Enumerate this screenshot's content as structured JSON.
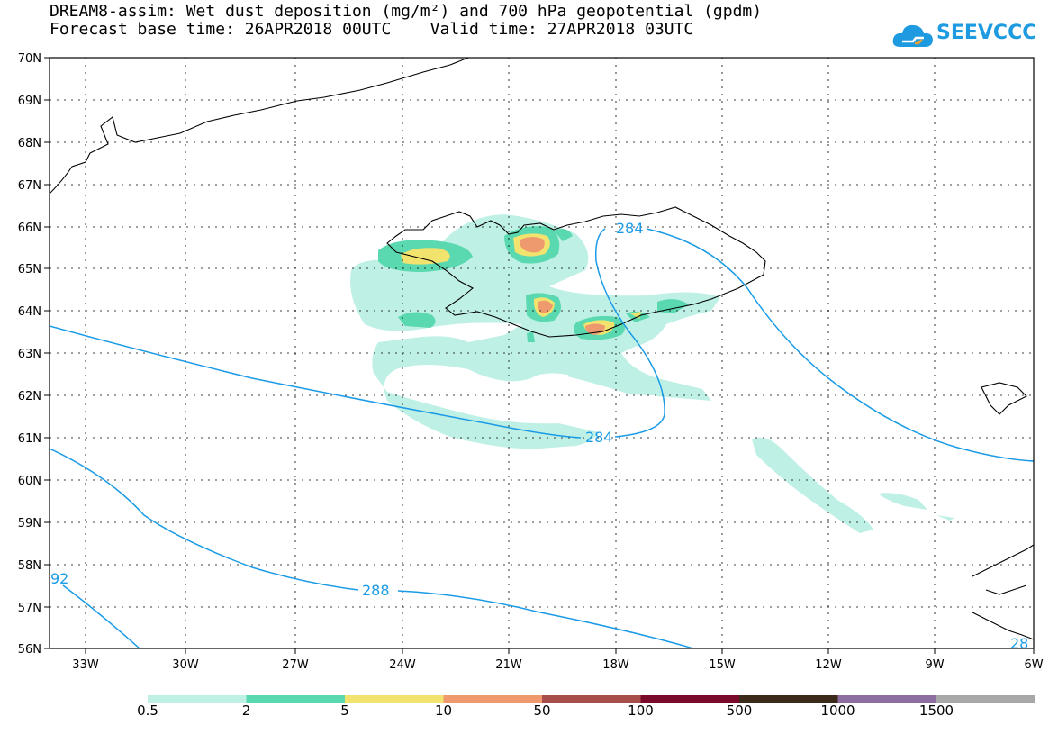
{
  "title": {
    "line1": "DREAM8-assim: Wet dust deposition (mg/m²) and 700 hPa geopotential (gpdm)",
    "line2_left": "Forecast base time: 26APR2018 00UTC",
    "line2_right": "Valid time: 27APR2018 03UTC"
  },
  "logo": {
    "text": "SEEVCCC",
    "icon": "cloud-icon",
    "color": "#1e9be0"
  },
  "axes": {
    "lon_labels": [
      "33W",
      "30W",
      "27W",
      "24W",
      "21W",
      "18W",
      "15W",
      "12W",
      "9W",
      "6W"
    ],
    "lat_labels": [
      "70N",
      "69N",
      "68N",
      "67N",
      "66N",
      "65N",
      "64N",
      "63N",
      "62N",
      "61N",
      "60N",
      "59N",
      "58N",
      "57N",
      "56N"
    ]
  },
  "contours": {
    "color": "#1a9be6",
    "labels": [
      "284",
      "284",
      "288",
      "92",
      "28"
    ]
  },
  "colorbar": {
    "colors": [
      "#bff0e6",
      "#5ad9b0",
      "#f2e36e",
      "#ee9a6e",
      "#a84e4a",
      "#7a0a2a",
      "#3b2a1a",
      "#8e6ea0",
      "#a8a8a8"
    ],
    "labels": [
      "0.5",
      "2",
      "5",
      "10",
      "50",
      "100",
      "500",
      "1000",
      "1500"
    ]
  }
}
